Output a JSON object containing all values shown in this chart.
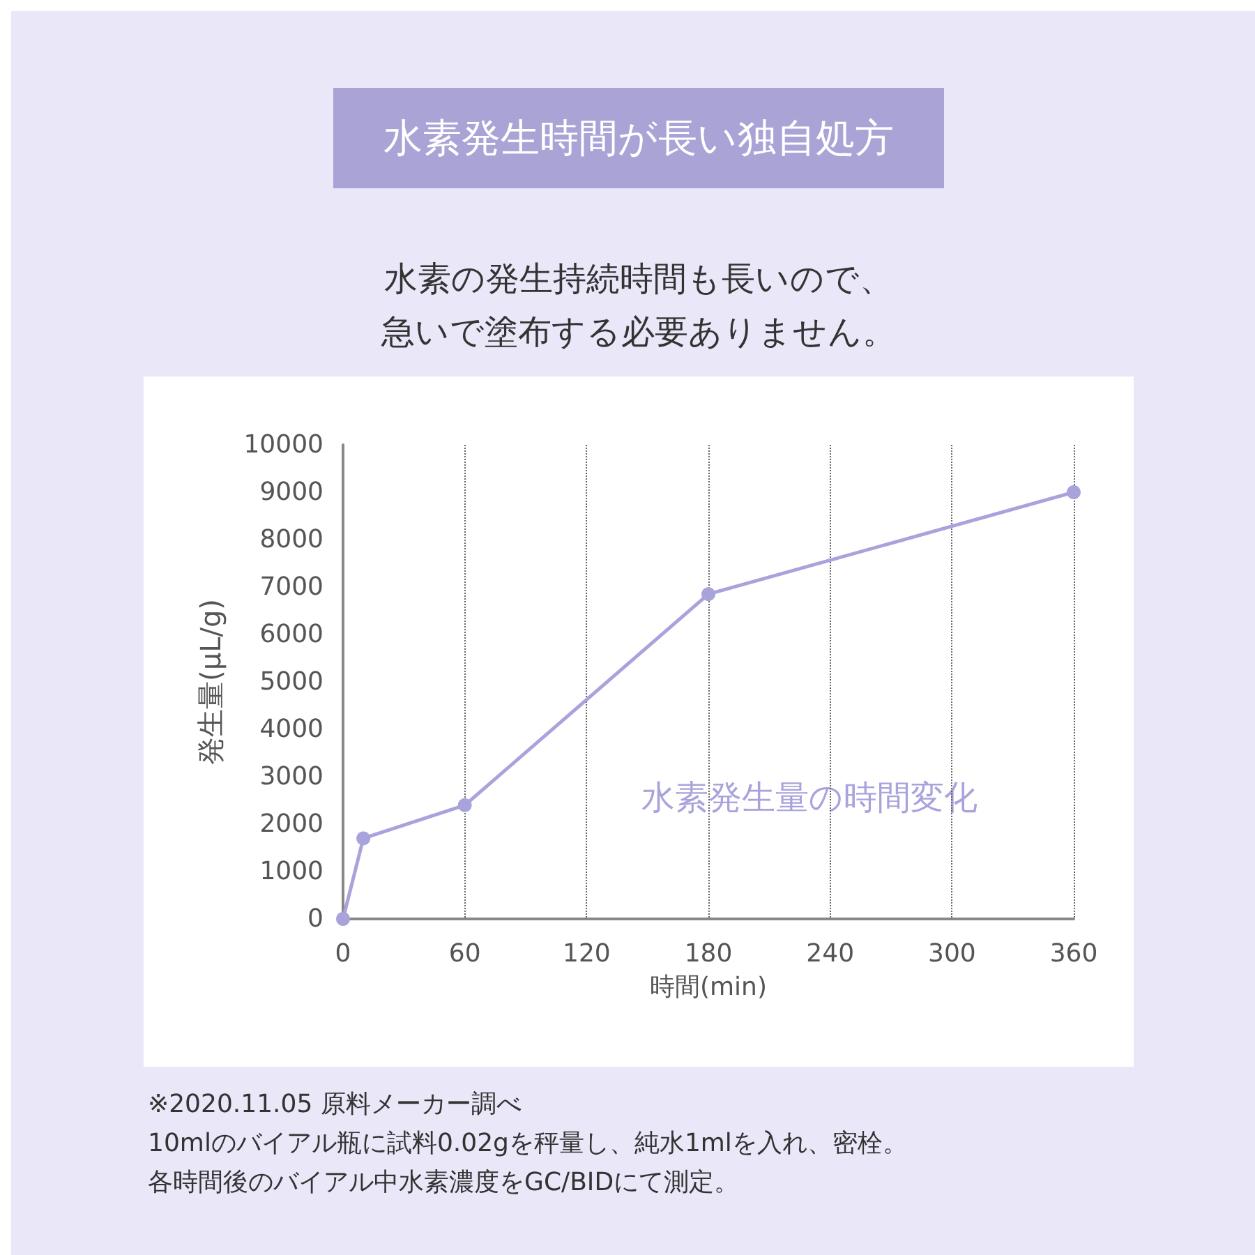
{
  "chart_data": {
    "type": "line",
    "title": "水素発生時間が長い独自処方",
    "subtitle": "水素の発生持続時間も長いので、急いで塗布する必要ありません。",
    "xlabel": "時間(min)",
    "ylabel": "発生量(μL/g)",
    "series": [
      {
        "name": "水素発生量の時間変化",
        "color": "#a9a3dc",
        "x": [
          0,
          10,
          60,
          180,
          360
        ],
        "values": [
          0,
          1700,
          2400,
          6850,
          9000
        ]
      }
    ],
    "xlim": [
      0,
      360
    ],
    "xticks": [
      0,
      60,
      120,
      180,
      240,
      300,
      360
    ],
    "ylim": [
      0,
      10000
    ],
    "yticks": [
      0,
      1000,
      2000,
      3000,
      4000,
      5000,
      6000,
      7000,
      8000,
      9000,
      10000
    ],
    "grid": "x",
    "marker": "circle",
    "line_style": "solid",
    "legend": false,
    "annotations": [
      "※2020.11.05 原料メーカー調べ",
      "10mlのバイアル瓶に試料0.02gを秤量し、純水1mlを入れ、密栓。",
      "各時間後のバイアル中水素濃度をGC/BIDにて測定。"
    ]
  }
}
